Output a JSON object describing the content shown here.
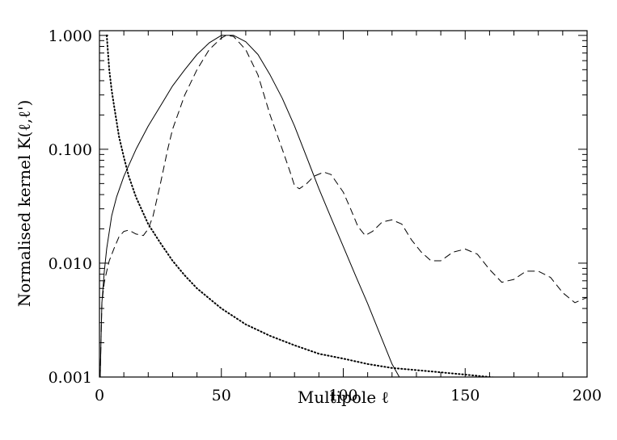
{
  "chart_data": {
    "type": "line",
    "xlabel": "Multipole ℓ",
    "ylabel": "Normalised kernel K(ℓ,ℓ')",
    "xlim": [
      0,
      200
    ],
    "ylim": [
      0.001,
      1.1
    ],
    "yscale": "log",
    "grid": false,
    "x_ticks": [
      0,
      50,
      100,
      150,
      200
    ],
    "x_tick_labels": [
      "0",
      "50",
      "100",
      "150",
      "200"
    ],
    "y_ticks": [
      0.001,
      0.01,
      0.1,
      1.0
    ],
    "y_tick_labels": [
      "0.001",
      "0.010",
      "0.100",
      "1.000"
    ],
    "series": [
      {
        "style": "solid",
        "points": [
          [
            0.3,
            0.001
          ],
          [
            1,
            0.0045
          ],
          [
            2,
            0.0085
          ],
          [
            3,
            0.0135
          ],
          [
            5,
            0.026
          ],
          [
            7,
            0.038
          ],
          [
            10,
            0.058
          ],
          [
            15,
            0.1
          ],
          [
            20,
            0.16
          ],
          [
            25,
            0.24
          ],
          [
            30,
            0.36
          ],
          [
            35,
            0.5
          ],
          [
            40,
            0.68
          ],
          [
            45,
            0.86
          ],
          [
            50,
            1.0
          ],
          [
            55,
            1.0
          ],
          [
            60,
            0.88
          ],
          [
            65,
            0.68
          ],
          [
            70,
            0.45
          ],
          [
            75,
            0.28
          ],
          [
            80,
            0.16
          ],
          [
            85,
            0.085
          ],
          [
            90,
            0.045
          ],
          [
            95,
            0.025
          ],
          [
            100,
            0.014
          ],
          [
            105,
            0.0078
          ],
          [
            110,
            0.0044
          ],
          [
            115,
            0.0024
          ],
          [
            120,
            0.0013
          ],
          [
            123,
            0.001
          ]
        ]
      },
      {
        "style": "dashed",
        "points": [
          [
            0.3,
            0.001
          ],
          [
            1,
            0.0045
          ],
          [
            2,
            0.0068
          ],
          [
            3,
            0.0085
          ],
          [
            4,
            0.0105
          ],
          [
            6,
            0.0135
          ],
          [
            8,
            0.017
          ],
          [
            10,
            0.019
          ],
          [
            12,
            0.0195
          ],
          [
            15,
            0.018
          ],
          [
            18,
            0.0175
          ],
          [
            20,
            0.02
          ],
          [
            22,
            0.026
          ],
          [
            25,
            0.05
          ],
          [
            28,
            0.1
          ],
          [
            30,
            0.15
          ],
          [
            35,
            0.3
          ],
          [
            40,
            0.5
          ],
          [
            45,
            0.75
          ],
          [
            50,
            0.95
          ],
          [
            52,
            1.0
          ],
          [
            55,
            0.98
          ],
          [
            60,
            0.75
          ],
          [
            65,
            0.45
          ],
          [
            70,
            0.2
          ],
          [
            75,
            0.1
          ],
          [
            78,
            0.065
          ],
          [
            80,
            0.048
          ],
          [
            82,
            0.045
          ],
          [
            85,
            0.05
          ],
          [
            88,
            0.058
          ],
          [
            92,
            0.063
          ],
          [
            95,
            0.06
          ],
          [
            100,
            0.042
          ],
          [
            103,
            0.03
          ],
          [
            106,
            0.021
          ],
          [
            109,
            0.0175
          ],
          [
            112,
            0.019
          ],
          [
            116,
            0.023
          ],
          [
            120,
            0.024
          ],
          [
            124,
            0.022
          ],
          [
            128,
            0.016
          ],
          [
            132,
            0.0125
          ],
          [
            136,
            0.0105
          ],
          [
            140,
            0.0105
          ],
          [
            145,
            0.0125
          ],
          [
            150,
            0.0133
          ],
          [
            155,
            0.012
          ],
          [
            160,
            0.0088
          ],
          [
            165,
            0.0068
          ],
          [
            170,
            0.0072
          ],
          [
            175,
            0.0085
          ],
          [
            180,
            0.0085
          ],
          [
            185,
            0.0075
          ],
          [
            190,
            0.0055
          ],
          [
            195,
            0.0045
          ],
          [
            198,
            0.0048
          ],
          [
            200,
            0.005
          ]
        ]
      },
      {
        "style": "dotted",
        "points": [
          [
            3,
            1.0
          ],
          [
            4,
            0.5
          ],
          [
            5,
            0.33
          ],
          [
            6,
            0.24
          ],
          [
            8,
            0.13
          ],
          [
            10,
            0.085
          ],
          [
            12,
            0.058
          ],
          [
            15,
            0.038
          ],
          [
            20,
            0.022
          ],
          [
            25,
            0.015
          ],
          [
            30,
            0.0105
          ],
          [
            35,
            0.0078
          ],
          [
            40,
            0.006
          ],
          [
            50,
            0.004
          ],
          [
            60,
            0.0029
          ],
          [
            70,
            0.0023
          ],
          [
            80,
            0.0019
          ],
          [
            90,
            0.0016
          ],
          [
            100,
            0.00145
          ],
          [
            110,
            0.0013
          ],
          [
            120,
            0.0012
          ],
          [
            130,
            0.00115
          ],
          [
            140,
            0.0011
          ],
          [
            150,
            0.00105
          ],
          [
            160,
            0.001
          ],
          [
            170,
            0.00095
          ]
        ]
      }
    ]
  }
}
